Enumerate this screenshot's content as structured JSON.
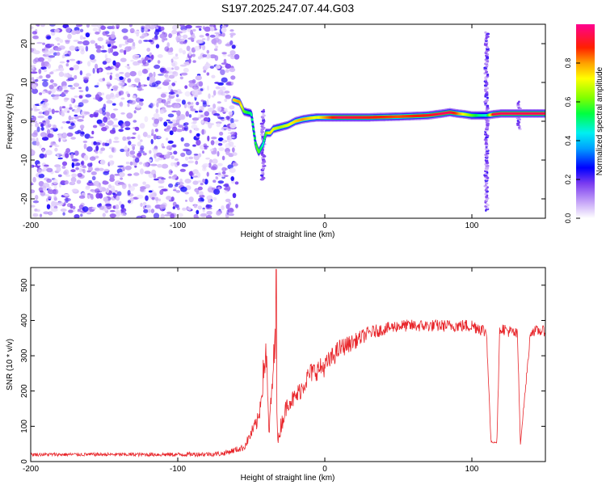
{
  "title": "S197.2025.247.07.44.G03",
  "chart_data": [
    {
      "type": "heatmap",
      "title": "S197.2025.247.07.44.G03",
      "xlabel": "Height of straight line (km)",
      "ylabel": "Frequency (Hz)",
      "xlim": [
        -200,
        150
      ],
      "ylim": [
        -25,
        25
      ],
      "x_ticks": [
        -200,
        -100,
        0,
        100
      ],
      "y_ticks": [
        -20,
        -10,
        0,
        10,
        20
      ],
      "noise_region_x": [
        -200,
        -62
      ],
      "signal_track": {
        "x": [
          -62,
          -58,
          -55,
          -50,
          -47,
          -45,
          -42,
          -40,
          -37,
          -35,
          -30,
          -25,
          -20,
          -15,
          -10,
          -5,
          0,
          10,
          30,
          50,
          70,
          80,
          85,
          90,
          95,
          100,
          105,
          110,
          115,
          120,
          130,
          140,
          150
        ],
        "freq_hz": [
          5.5,
          5.0,
          2.5,
          2.0,
          -6.0,
          -8.0,
          -6.0,
          -3.0,
          -3.0,
          -2.0,
          -1.5,
          -1.0,
          0.0,
          0.5,
          0.8,
          1.0,
          1.0,
          1.0,
          1.0,
          1.2,
          1.5,
          2.0,
          2.3,
          2.0,
          1.8,
          1.5,
          1.5,
          1.5,
          1.8,
          2.0,
          2.0,
          2.0,
          2.0
        ],
        "amplitude": [
          0.75,
          0.8,
          0.6,
          0.5,
          0.55,
          0.6,
          0.45,
          0.6,
          0.75,
          0.7,
          0.65,
          0.7,
          0.75,
          0.8,
          0.75,
          0.7,
          0.8,
          0.95,
          0.9,
          0.85,
          0.9,
          0.95,
          0.95,
          0.85,
          0.7,
          0.6,
          0.5,
          0.45,
          0.95,
          0.95,
          0.95,
          0.95,
          0.95
        ]
      },
      "spikes": [
        {
          "x": -42,
          "freq_range": [
            -15,
            3
          ]
        },
        {
          "x": 110,
          "freq_range": [
            -23,
            23
          ]
        },
        {
          "x": 132,
          "freq_range": [
            -2,
            5
          ]
        }
      ],
      "colorbar": {
        "label": "Normalized spectral amplitude",
        "range": [
          0,
          1
        ],
        "ticks": [
          "0.0",
          "0.2",
          "0.4",
          "0.6",
          "0.8"
        ]
      }
    },
    {
      "type": "line",
      "xlabel": "Height of straight line (km)",
      "ylabel": "SNR (10 * v/v)",
      "xlim": [
        -200,
        150
      ],
      "ylim": [
        0,
        550
      ],
      "x_ticks": [
        -200,
        -100,
        0,
        100
      ],
      "y_ticks": [
        0,
        100,
        200,
        300,
        400,
        500
      ],
      "color": "#e8252a",
      "series": [
        {
          "name": "SNR",
          "x": [
            -200,
            -150,
            -100,
            -70,
            -55,
            -45,
            -40,
            -38,
            -36,
            -34,
            -33,
            -32,
            -30,
            -25,
            -20,
            -10,
            0,
            10,
            20,
            30,
            40,
            50,
            60,
            70,
            80,
            90,
            100,
            105,
            110,
            113,
            117,
            119,
            125,
            131,
            133,
            140,
            150
          ],
          "y": [
            20,
            20,
            20,
            22,
            40,
            120,
            320,
            80,
            200,
            330,
            300,
            50,
            100,
            170,
            180,
            250,
            270,
            320,
            340,
            365,
            375,
            385,
            385,
            385,
            385,
            385,
            385,
            380,
            365,
            55,
            55,
            380,
            370,
            360,
            50,
            370,
            370
          ],
          "noise_amplitude": [
            10,
            10,
            12,
            14,
            20,
            50,
            120,
            40,
            80,
            120,
            200,
            30,
            50,
            50,
            55,
            60,
            60,
            55,
            45,
            40,
            35,
            35,
            35,
            35,
            35,
            35,
            40,
            40,
            40,
            5,
            5,
            35,
            35,
            35,
            5,
            30,
            30
          ]
        }
      ],
      "peak": {
        "x": -33,
        "y": 545
      }
    }
  ]
}
